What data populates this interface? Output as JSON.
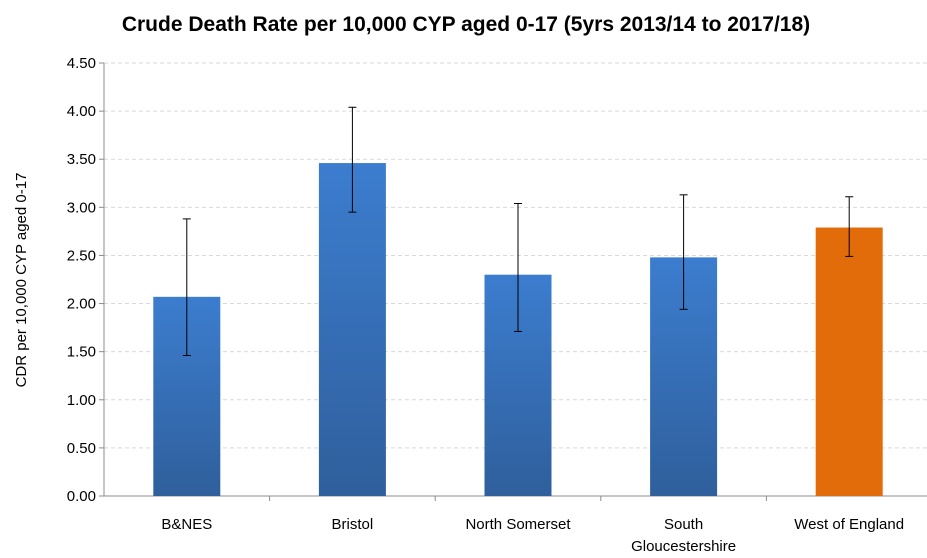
{
  "chart_data": {
    "type": "bar",
    "title": "Crude Death Rate per 10,000 CYP aged 0-17 (5yrs 2013/14 to 2017/18)",
    "ylabel": "CDR per 10,000 CYP aged 0-17",
    "xlabel": "",
    "ylim": [
      0,
      4.5
    ],
    "yticks": [
      "0.00",
      "0.50",
      "1.00",
      "1.50",
      "2.00",
      "2.50",
      "3.00",
      "3.50",
      "4.00",
      "4.50"
    ],
    "grid": true,
    "categories": [
      [
        "B&NES"
      ],
      [
        "Bristol"
      ],
      [
        "North Somerset"
      ],
      [
        "South",
        "Gloucestershire"
      ],
      [
        "West of England"
      ]
    ],
    "values": [
      2.07,
      3.46,
      2.3,
      2.48,
      2.79
    ],
    "error_low": [
      1.46,
      2.95,
      1.71,
      1.94,
      2.49
    ],
    "error_high": [
      2.88,
      4.04,
      3.04,
      3.13,
      3.11
    ],
    "colors": {
      "default_top": "#3c7dcf",
      "default_bottom": "#2f5f9c",
      "highlight": "#e36c0a"
    },
    "highlight_index": 4
  }
}
